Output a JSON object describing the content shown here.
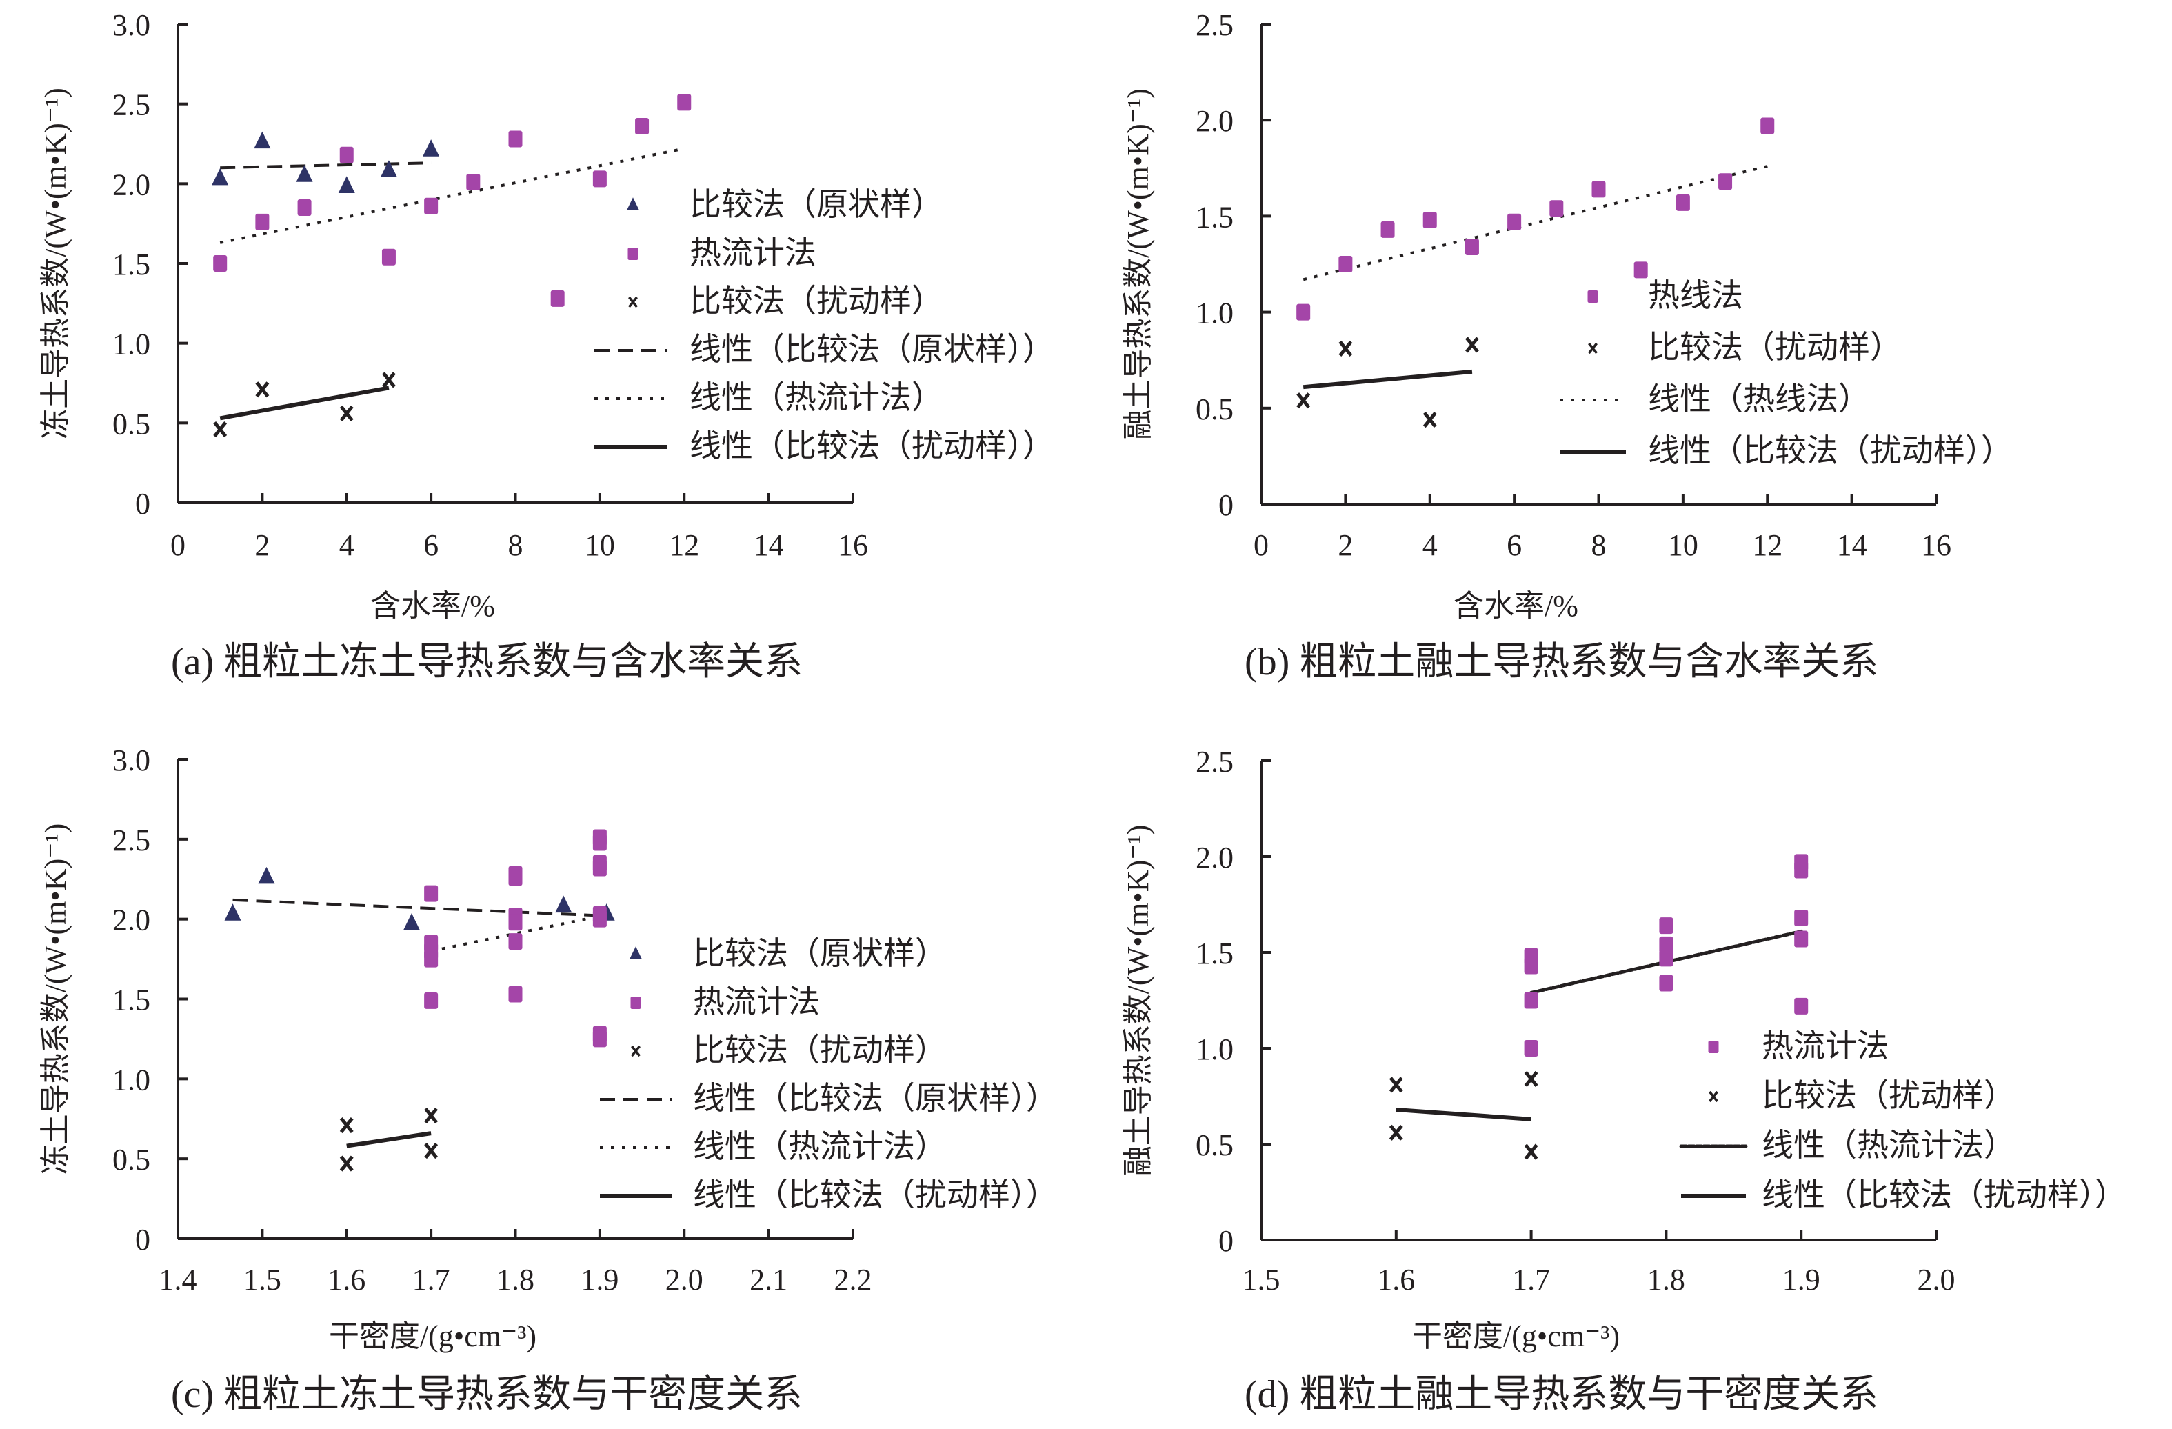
{
  "colors": {
    "triangle": "#2e3366",
    "square": "#a445a8",
    "cross": "#231f20",
    "line": "#231f20",
    "axis": "#231f20"
  },
  "chart_data": [
    {
      "id": "a",
      "type": "scatter",
      "caption": "(a) 粗粒土冻土导热系数与含水率关系",
      "xlabel": "含水率/%",
      "ylabel": "冻土导热系数/(W•(m•K)⁻¹)",
      "xlim": [
        0,
        16
      ],
      "ylim": [
        0,
        3.0
      ],
      "xticks": [
        0,
        2,
        4,
        6,
        8,
        10,
        12,
        14,
        16
      ],
      "xtick_labels": [
        "0",
        "2",
        "4",
        "6",
        "8",
        "10",
        "12",
        "14",
        "16"
      ],
      "yticks": [
        0,
        0.5,
        1.0,
        1.5,
        2.0,
        2.5,
        3.0
      ],
      "ytick_labels": [
        "0",
        "0.5",
        "1.0",
        "1.5",
        "2.0",
        "2.5",
        "3.0"
      ],
      "grid": false,
      "legend_position": "right",
      "series": [
        {
          "name": "比较法（原状样）",
          "marker": "triangle",
          "x": [
            1,
            2,
            3,
            4,
            5,
            6
          ],
          "y": [
            2.03,
            2.26,
            2.05,
            1.98,
            2.08,
            2.21
          ]
        },
        {
          "name": "热流计法",
          "marker": "square",
          "x": [
            1,
            2,
            3,
            4,
            5,
            6,
            7,
            8,
            9,
            10,
            11,
            12
          ],
          "y": [
            1.5,
            1.76,
            1.85,
            2.18,
            1.54,
            1.86,
            2.01,
            2.28,
            1.28,
            2.03,
            2.36,
            2.51
          ]
        },
        {
          "name": "比较法（扰动样）",
          "marker": "cross",
          "x": [
            1,
            2,
            4,
            5
          ],
          "y": [
            0.46,
            0.71,
            0.56,
            0.77
          ]
        }
      ],
      "trendlines": [
        {
          "name": "线性（比较法（原状样））",
          "style": "dashed",
          "x": [
            1,
            6
          ],
          "y": [
            2.1,
            2.13
          ]
        },
        {
          "name": "线性（热流计法）",
          "style": "dotted",
          "x": [
            1,
            12
          ],
          "y": [
            1.63,
            2.22
          ]
        },
        {
          "name": "线性（比较法（扰动样））",
          "style": "solid",
          "x": [
            1,
            5
          ],
          "y": [
            0.53,
            0.72
          ]
        }
      ]
    },
    {
      "id": "b",
      "type": "scatter",
      "caption": "(b) 粗粒土融土导热系数与含水率关系",
      "xlabel": "含水率/%",
      "ylabel": "融土导热系数/(W•(m•K)⁻¹)",
      "xlim": [
        0,
        16
      ],
      "ylim": [
        0,
        2.5
      ],
      "xticks": [
        0,
        2,
        4,
        6,
        8,
        10,
        12,
        14,
        16
      ],
      "xtick_labels": [
        "0",
        "2",
        "4",
        "6",
        "8",
        "10",
        "12",
        "14",
        "16"
      ],
      "yticks": [
        0,
        0.5,
        1.0,
        1.5,
        2.0,
        2.5
      ],
      "ytick_labels": [
        "0",
        "0.5",
        "1.0",
        "1.5",
        "2.0",
        "2.5"
      ],
      "grid": false,
      "legend_position": "right",
      "series": [
        {
          "name": "热线法",
          "marker": "square",
          "x": [
            1,
            2,
            3,
            4,
            5,
            6,
            7,
            8,
            9,
            10,
            11,
            12
          ],
          "y": [
            1.0,
            1.25,
            1.43,
            1.48,
            1.34,
            1.47,
            1.54,
            1.64,
            1.22,
            1.57,
            1.68,
            1.97
          ]
        },
        {
          "name": "比较法（扰动样）",
          "marker": "cross",
          "x": [
            1,
            2,
            4,
            5
          ],
          "y": [
            0.54,
            0.81,
            0.44,
            0.83
          ]
        }
      ],
      "trendlines": [
        {
          "name": "线性（热线法）",
          "style": "dotted",
          "x": [
            1,
            12
          ],
          "y": [
            1.17,
            1.76
          ]
        },
        {
          "name": "线性（比较法（扰动样））",
          "style": "solid",
          "x": [
            1,
            5
          ],
          "y": [
            0.61,
            0.69
          ]
        }
      ]
    },
    {
      "id": "c",
      "type": "scatter",
      "caption": "(c) 粗粒土冻土导热系数与干密度关系",
      "xlabel": "干密度/(g•cm⁻³)",
      "ylabel": "冻土导热系数/(W•(m•K)⁻¹)",
      "xlim": [
        1.4,
        2.2
      ],
      "ylim": [
        0,
        3.0
      ],
      "xticks": [
        1.4,
        1.5,
        1.6,
        1.7,
        1.8,
        1.9,
        2.0,
        2.1,
        2.2
      ],
      "xtick_labels": [
        "1.4",
        "1.5",
        "1.6",
        "1.7",
        "1.8",
        "1.9",
        "2.0",
        "2.1",
        "2.2"
      ],
      "yticks": [
        0,
        0.5,
        1.0,
        1.5,
        2.0,
        2.5,
        3.0
      ],
      "ytick_labels": [
        "0",
        "0.5",
        "1.0",
        "1.5",
        "2.0",
        "2.5",
        "3.0"
      ],
      "grid": false,
      "legend_position": "right",
      "series": [
        {
          "name": "比较法（原状样）",
          "marker": "triangle",
          "x": [
            1.465,
            1.505,
            1.677,
            1.857,
            1.908
          ],
          "y": [
            2.03,
            2.26,
            1.97,
            2.08,
            2.03
          ]
        },
        {
          "name": "热流计法",
          "marker": "square",
          "x": [
            1.7,
            1.7,
            1.7,
            1.7,
            1.7,
            1.8,
            1.8,
            1.8,
            1.8,
            1.8,
            1.8,
            1.9,
            1.9,
            1.9,
            1.9,
            1.9,
            1.9,
            1.9,
            1.9
          ],
          "y": [
            2.16,
            1.85,
            1.8,
            1.75,
            1.49,
            2.28,
            2.26,
            2.02,
            1.98,
            1.86,
            1.53,
            2.51,
            2.48,
            2.35,
            2.32,
            2.03,
            2.0,
            1.28,
            1.25
          ]
        },
        {
          "name": "比较法（扰动样）",
          "marker": "cross",
          "x": [
            1.6,
            1.6,
            1.7,
            1.7
          ],
          "y": [
            0.71,
            0.47,
            0.77,
            0.55
          ]
        }
      ],
      "trendlines": [
        {
          "name": "线性（比较法（原状样））",
          "style": "dashed",
          "x": [
            1.465,
            1.91
          ],
          "y": [
            2.12,
            2.02
          ]
        },
        {
          "name": "线性（热流计法）",
          "style": "dotted",
          "x": [
            1.7,
            1.91
          ],
          "y": [
            1.8,
            2.03
          ]
        },
        {
          "name": "线性（比较法（扰动样））",
          "style": "solid",
          "x": [
            1.6,
            1.7
          ],
          "y": [
            0.58,
            0.66
          ]
        }
      ]
    },
    {
      "id": "d",
      "type": "scatter",
      "caption": "(d) 粗粒土融土导热系数与干密度关系",
      "xlabel": "干密度/(g•cm⁻³)",
      "ylabel": "融土导热系数/(W•(m•K)⁻¹)",
      "xlim": [
        1.5,
        2.0
      ],
      "ylim": [
        0,
        2.5
      ],
      "xticks": [
        1.5,
        1.6,
        1.7,
        1.8,
        1.9,
        2.0
      ],
      "xtick_labels": [
        "1.5",
        "1.6",
        "1.7",
        "1.8",
        "1.9",
        "2.0"
      ],
      "yticks": [
        0,
        0.5,
        1.0,
        1.5,
        2.0,
        2.5
      ],
      "ytick_labels": [
        "0",
        "0.5",
        "1.0",
        "1.5",
        "2.0",
        "2.5"
      ],
      "grid": false,
      "legend_position": "right",
      "series": [
        {
          "name": "热流计法",
          "marker": "square",
          "x": [
            1.7,
            1.7,
            1.7,
            1.7,
            1.8,
            1.8,
            1.8,
            1.8,
            1.9,
            1.9,
            1.9,
            1.9,
            1.9
          ],
          "y": [
            1.48,
            1.43,
            1.25,
            1.0,
            1.64,
            1.54,
            1.47,
            1.34,
            1.97,
            1.93,
            1.68,
            1.57,
            1.22
          ]
        },
        {
          "name": "比较法（扰动样）",
          "marker": "cross",
          "x": [
            1.6,
            1.6,
            1.7,
            1.7
          ],
          "y": [
            0.81,
            0.56,
            0.84,
            0.46
          ]
        }
      ],
      "trendlines": [
        {
          "name": "线性（热流计法）",
          "style": "dotted-heavy",
          "x": [
            1.7,
            1.9
          ],
          "y": [
            1.29,
            1.61
          ]
        },
        {
          "name": "线性（比较法（扰动样））",
          "style": "solid",
          "x": [
            1.6,
            1.7
          ],
          "y": [
            0.68,
            0.63
          ]
        }
      ]
    }
  ]
}
